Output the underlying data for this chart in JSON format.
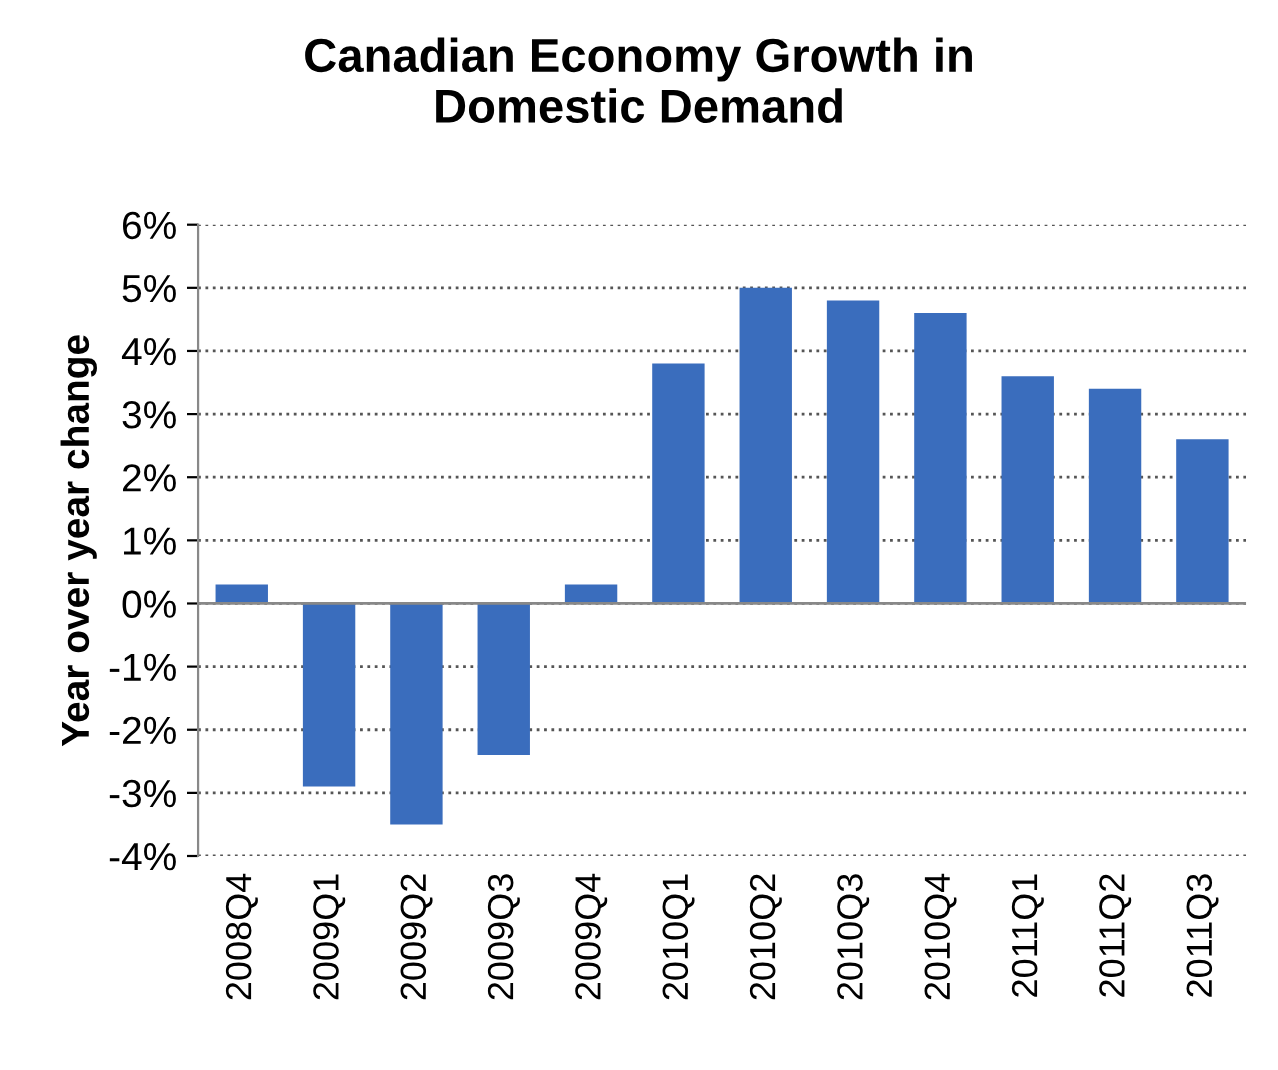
{
  "chart_data": {
    "type": "bar",
    "title": "Canadian Economy Growth in\nDomestic Demand",
    "ylabel": "Year over year change",
    "categories": [
      "2008Q4",
      "2009Q1",
      "2009Q2",
      "2009Q3",
      "2009Q4",
      "2010Q1",
      "2010Q2",
      "2010Q3",
      "2010Q4",
      "2011Q1",
      "2011Q2",
      "2011Q3"
    ],
    "values": [
      0.3,
      -2.9,
      -3.5,
      -2.4,
      0.3,
      3.8,
      5.0,
      4.8,
      4.6,
      3.6,
      3.4,
      2.6
    ],
    "color": "#3a6dbd",
    "ylim": [
      -4,
      6
    ],
    "yticks": [
      {
        "value": -4,
        "label": "-4%"
      },
      {
        "value": -3,
        "label": "-3%"
      },
      {
        "value": -2,
        "label": "-2%"
      },
      {
        "value": -1,
        "label": "-1%"
      },
      {
        "value": 0,
        "label": "0%"
      },
      {
        "value": 1,
        "label": "1%"
      },
      {
        "value": 2,
        "label": "2%"
      },
      {
        "value": 3,
        "label": "3%"
      },
      {
        "value": 4,
        "label": "4%"
      },
      {
        "value": 5,
        "label": "5%"
      },
      {
        "value": 6,
        "label": "6%"
      }
    ],
    "grid": "y"
  }
}
